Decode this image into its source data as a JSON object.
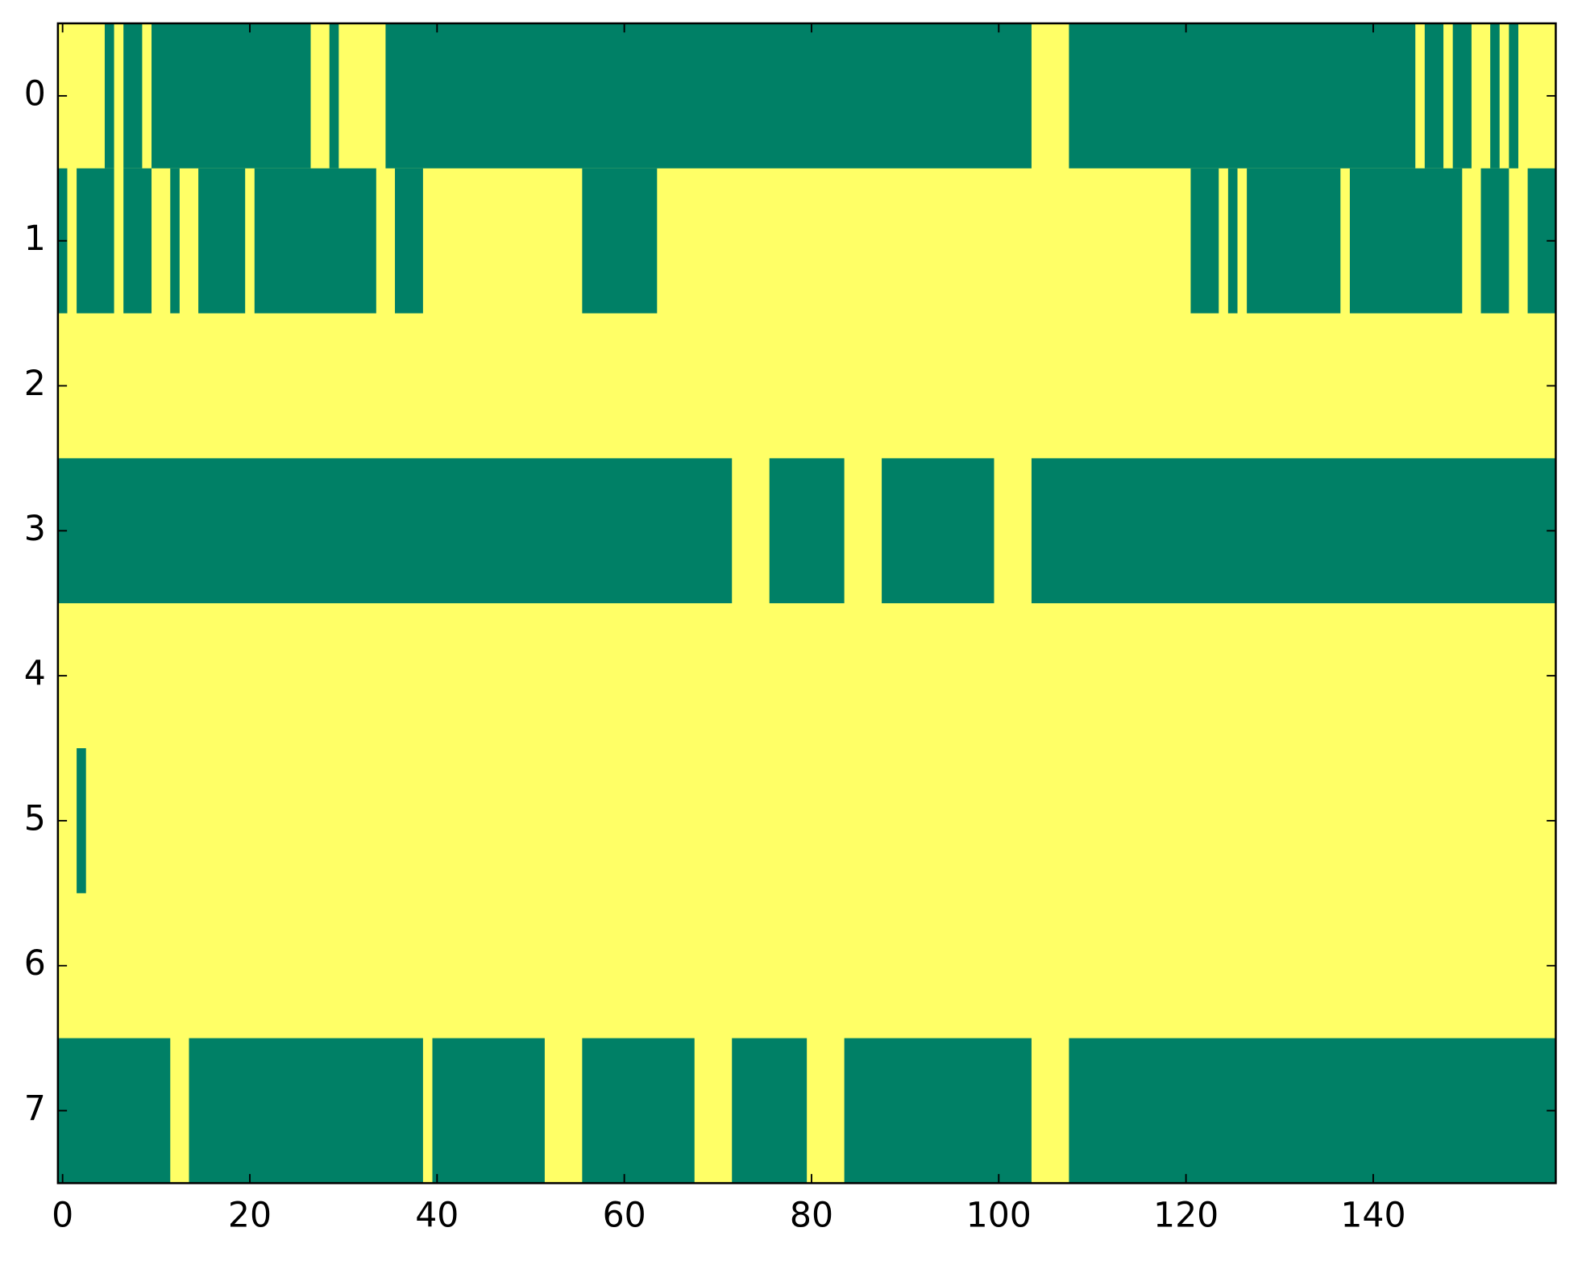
{
  "chart_data": {
    "type": "heatmap",
    "xlim": [
      -0.5,
      159.5
    ],
    "ylim": [
      7.5,
      -0.5
    ],
    "xticks": [
      0,
      20,
      40,
      60,
      80,
      100,
      120,
      140
    ],
    "yticks": [
      0,
      1,
      2,
      3,
      4,
      5,
      6,
      7
    ],
    "background_color": "#ffff66",
    "span_color": "#008066",
    "rows": [
      [
        [
          4.5,
          5.5
        ],
        [
          6.5,
          8.5
        ],
        [
          9.5,
          26.5
        ],
        [
          28.5,
          29.5
        ],
        [
          34.5,
          103.5
        ],
        [
          107.5,
          144.5
        ],
        [
          145.5,
          147.5
        ],
        [
          148.5,
          150.5
        ],
        [
          152.5,
          153.5
        ],
        [
          154.5,
          155.5
        ]
      ],
      [
        [
          -0.5,
          0.5
        ],
        [
          1.5,
          5.5
        ],
        [
          6.5,
          9.5
        ],
        [
          11.5,
          12.5
        ],
        [
          14.5,
          19.5
        ],
        [
          20.5,
          33.5
        ],
        [
          35.5,
          38.5
        ],
        [
          55.5,
          63.5
        ],
        [
          120.5,
          123.5
        ],
        [
          124.5,
          125.5
        ],
        [
          126.5,
          136.5
        ],
        [
          137.5,
          149.5
        ],
        [
          151.5,
          154.5
        ],
        [
          156.5,
          159.5
        ]
      ],
      [],
      [
        [
          -0.5,
          71.5
        ],
        [
          75.5,
          83.5
        ],
        [
          87.5,
          99.5
        ],
        [
          103.5,
          159.5
        ]
      ],
      [],
      [
        [
          1.5,
          2.5
        ]
      ],
      [],
      [
        [
          -0.5,
          11.5
        ],
        [
          13.5,
          38.5
        ],
        [
          39.5,
          51.5
        ],
        [
          55.5,
          67.5
        ],
        [
          71.5,
          79.5
        ],
        [
          83.5,
          103.5
        ],
        [
          107.5,
          159.5
        ]
      ]
    ]
  }
}
